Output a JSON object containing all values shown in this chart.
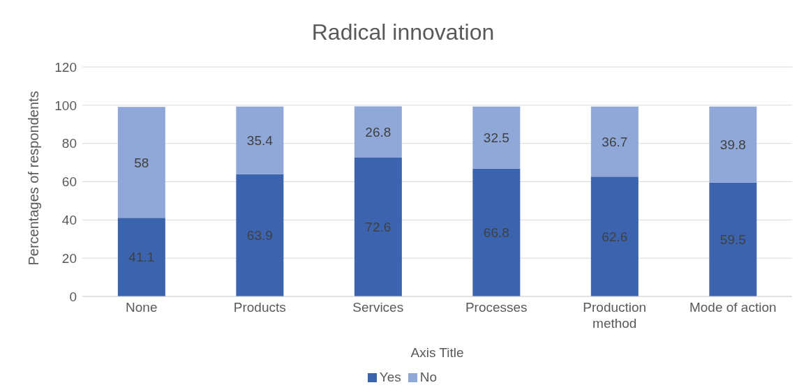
{
  "chart_data": {
    "type": "bar",
    "title": "Radical innovation",
    "xlabel": "Axis Title",
    "ylabel": "Percentages of respondents",
    "categories": [
      "None",
      "Products",
      "Services",
      "Processes",
      "Production method",
      "Mode of action"
    ],
    "series": [
      {
        "name": "Yes",
        "color": "#3c64ae",
        "values": [
          41.1,
          63.9,
          72.6,
          66.8,
          62.6,
          59.5
        ]
      },
      {
        "name": "No",
        "color": "#8fa8d8",
        "values": [
          58,
          35.4,
          26.8,
          32.5,
          36.7,
          39.8
        ]
      }
    ],
    "stacked": true,
    "data_labels": true,
    "ylim": [
      0,
      120
    ],
    "yticks": [
      0,
      20,
      40,
      60,
      80,
      100,
      120
    ],
    "grid": "y",
    "legend": "bottom"
  }
}
